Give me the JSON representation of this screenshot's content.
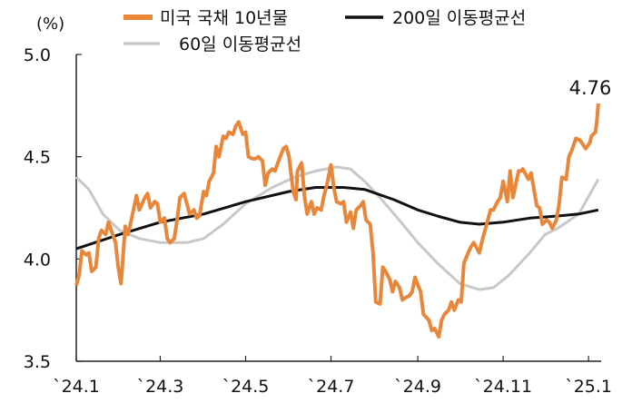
{
  "chart_data": {
    "type": "line",
    "ylabel": "(%)",
    "ylim": [
      3.5,
      5.0
    ],
    "yticks": [
      "5.0",
      "4.5",
      "4.0",
      "3.5"
    ],
    "y_tick_values": [
      5.0,
      4.5,
      4.0,
      3.5
    ],
    "xlim": [
      "2024-01-01",
      "2025-01-10"
    ],
    "xticks": [
      "`24.1",
      "`24.3",
      "`24.5",
      "`24.7",
      "`24.9",
      "`24.11",
      "`25.1"
    ],
    "x_tick_dates": [
      "2024-01-01",
      "2024-03-01",
      "2024-05-01",
      "2024-07-01",
      "2024-09-01",
      "2024-11-01",
      "2025-01-01"
    ],
    "grid": false,
    "legend": "top",
    "annotation": {
      "text": "4.76",
      "series": "미국 국채 10년물",
      "date": "2025-01-07"
    },
    "series": [
      {
        "name": "미국 국채 10년물",
        "color": "#E8873A",
        "points": [
          [
            "2024-01-01",
            3.87
          ],
          [
            "2024-01-03",
            3.92
          ],
          [
            "2024-01-05",
            4.04
          ],
          [
            "2024-01-08",
            4.02
          ],
          [
            "2024-01-10",
            4.03
          ],
          [
            "2024-01-12",
            3.94
          ],
          [
            "2024-01-15",
            3.96
          ],
          [
            "2024-01-17",
            4.1
          ],
          [
            "2024-01-19",
            4.14
          ],
          [
            "2024-01-22",
            4.12
          ],
          [
            "2024-01-24",
            4.18
          ],
          [
            "2024-01-26",
            4.14
          ],
          [
            "2024-01-29",
            4.08
          ],
          [
            "2024-01-31",
            3.96
          ],
          [
            "2024-02-02",
            3.88
          ],
          [
            "2024-02-05",
            4.16
          ],
          [
            "2024-02-07",
            4.12
          ],
          [
            "2024-02-09",
            4.18
          ],
          [
            "2024-02-13",
            4.31
          ],
          [
            "2024-02-15",
            4.24
          ],
          [
            "2024-02-19",
            4.3
          ],
          [
            "2024-02-21",
            4.32
          ],
          [
            "2024-02-23",
            4.25
          ],
          [
            "2024-02-26",
            4.28
          ],
          [
            "2024-02-28",
            4.27
          ],
          [
            "2024-03-01",
            4.18
          ],
          [
            "2024-03-04",
            4.2
          ],
          [
            "2024-03-06",
            4.1
          ],
          [
            "2024-03-08",
            4.08
          ],
          [
            "2024-03-11",
            4.1
          ],
          [
            "2024-03-13",
            4.19
          ],
          [
            "2024-03-15",
            4.3
          ],
          [
            "2024-03-18",
            4.32
          ],
          [
            "2024-03-20",
            4.27
          ],
          [
            "2024-03-22",
            4.22
          ],
          [
            "2024-03-25",
            4.24
          ],
          [
            "2024-03-27",
            4.2
          ],
          [
            "2024-03-29",
            4.21
          ],
          [
            "2024-04-01",
            4.33
          ],
          [
            "2024-04-03",
            4.31
          ],
          [
            "2024-04-05",
            4.38
          ],
          [
            "2024-04-08",
            4.42
          ],
          [
            "2024-04-10",
            4.55
          ],
          [
            "2024-04-12",
            4.5
          ],
          [
            "2024-04-15",
            4.6
          ],
          [
            "2024-04-17",
            4.59
          ],
          [
            "2024-04-19",
            4.62
          ],
          [
            "2024-04-22",
            4.61
          ],
          [
            "2024-04-24",
            4.65
          ],
          [
            "2024-04-26",
            4.67
          ],
          [
            "2024-04-29",
            4.61
          ],
          [
            "2024-05-01",
            4.62
          ],
          [
            "2024-05-03",
            4.5
          ],
          [
            "2024-05-06",
            4.49
          ],
          [
            "2024-05-08",
            4.49
          ],
          [
            "2024-05-10",
            4.5
          ],
          [
            "2024-05-13",
            4.48
          ],
          [
            "2024-05-15",
            4.36
          ],
          [
            "2024-05-17",
            4.42
          ],
          [
            "2024-05-20",
            4.44
          ],
          [
            "2024-05-22",
            4.43
          ],
          [
            "2024-05-24",
            4.47
          ],
          [
            "2024-05-28",
            4.54
          ],
          [
            "2024-05-30",
            4.55
          ],
          [
            "2024-06-01",
            4.5
          ],
          [
            "2024-06-04",
            4.33
          ],
          [
            "2024-06-06",
            4.29
          ],
          [
            "2024-06-07",
            4.43
          ],
          [
            "2024-06-10",
            4.47
          ],
          [
            "2024-06-12",
            4.31
          ],
          [
            "2024-06-14",
            4.22
          ],
          [
            "2024-06-17",
            4.28
          ],
          [
            "2024-06-19",
            4.22
          ],
          [
            "2024-06-21",
            4.25
          ],
          [
            "2024-06-24",
            4.24
          ],
          [
            "2024-06-26",
            4.31
          ],
          [
            "2024-06-28",
            4.36
          ],
          [
            "2024-07-01",
            4.46
          ],
          [
            "2024-07-03",
            4.35
          ],
          [
            "2024-07-05",
            4.28
          ],
          [
            "2024-07-08",
            4.27
          ],
          [
            "2024-07-10",
            4.28
          ],
          [
            "2024-07-12",
            4.18
          ],
          [
            "2024-07-15",
            4.23
          ],
          [
            "2024-07-17",
            4.15
          ],
          [
            "2024-07-19",
            4.24
          ],
          [
            "2024-07-22",
            4.26
          ],
          [
            "2024-07-24",
            4.28
          ],
          [
            "2024-07-26",
            4.19
          ],
          [
            "2024-07-29",
            4.17
          ],
          [
            "2024-07-31",
            4.03
          ],
          [
            "2024-08-02",
            3.79
          ],
          [
            "2024-08-05",
            3.78
          ],
          [
            "2024-08-07",
            3.96
          ],
          [
            "2024-08-09",
            3.94
          ],
          [
            "2024-08-12",
            3.9
          ],
          [
            "2024-08-14",
            3.84
          ],
          [
            "2024-08-16",
            3.89
          ],
          [
            "2024-08-19",
            3.86
          ],
          [
            "2024-08-21",
            3.8
          ],
          [
            "2024-08-23",
            3.81
          ],
          [
            "2024-08-26",
            3.82
          ],
          [
            "2024-08-28",
            3.84
          ],
          [
            "2024-08-30",
            3.91
          ],
          [
            "2024-09-03",
            3.84
          ],
          [
            "2024-09-05",
            3.73
          ],
          [
            "2024-09-09",
            3.7
          ],
          [
            "2024-09-11",
            3.65
          ],
          [
            "2024-09-13",
            3.66
          ],
          [
            "2024-09-16",
            3.62
          ],
          [
            "2024-09-18",
            3.7
          ],
          [
            "2024-09-20",
            3.73
          ],
          [
            "2024-09-23",
            3.75
          ],
          [
            "2024-09-25",
            3.79
          ],
          [
            "2024-09-27",
            3.75
          ],
          [
            "2024-09-30",
            3.8
          ],
          [
            "2024-10-02",
            3.79
          ],
          [
            "2024-10-04",
            3.98
          ],
          [
            "2024-10-07",
            4.03
          ],
          [
            "2024-10-09",
            4.06
          ],
          [
            "2024-10-11",
            4.08
          ],
          [
            "2024-10-15",
            4.03
          ],
          [
            "2024-10-17",
            4.09
          ],
          [
            "2024-10-21",
            4.19
          ],
          [
            "2024-10-23",
            4.24
          ],
          [
            "2024-10-25",
            4.24
          ],
          [
            "2024-10-28",
            4.28
          ],
          [
            "2024-10-30",
            4.3
          ],
          [
            "2024-11-01",
            4.38
          ],
          [
            "2024-11-04",
            4.28
          ],
          [
            "2024-11-06",
            4.43
          ],
          [
            "2024-11-08",
            4.3
          ],
          [
            "2024-11-12",
            4.43
          ],
          [
            "2024-11-14",
            4.43
          ],
          [
            "2024-11-15",
            4.44
          ],
          [
            "2024-11-19",
            4.39
          ],
          [
            "2024-11-21",
            4.42
          ],
          [
            "2024-11-25",
            4.26
          ],
          [
            "2024-11-27",
            4.25
          ],
          [
            "2024-11-29",
            4.17
          ],
          [
            "2024-12-02",
            4.19
          ],
          [
            "2024-12-04",
            4.18
          ],
          [
            "2024-12-06",
            4.15
          ],
          [
            "2024-12-09",
            4.19
          ],
          [
            "2024-12-11",
            4.27
          ],
          [
            "2024-12-13",
            4.4
          ],
          [
            "2024-12-16",
            4.39
          ],
          [
            "2024-12-18",
            4.5
          ],
          [
            "2024-12-20",
            4.53
          ],
          [
            "2024-12-23",
            4.59
          ],
          [
            "2024-12-26",
            4.58
          ],
          [
            "2024-12-30",
            4.54
          ],
          [
            "2025-01-02",
            4.57
          ],
          [
            "2025-01-03",
            4.6
          ],
          [
            "2025-01-06",
            4.62
          ],
          [
            "2025-01-07",
            4.68
          ],
          [
            "2025-01-08",
            4.76
          ]
        ]
      },
      {
        "name": "200일 이동평균선",
        "color": "#111111",
        "points": [
          [
            "2024-01-01",
            4.05
          ],
          [
            "2024-02-01",
            4.12
          ],
          [
            "2024-03-01",
            4.18
          ],
          [
            "2024-04-01",
            4.22
          ],
          [
            "2024-05-01",
            4.28
          ],
          [
            "2024-06-01",
            4.33
          ],
          [
            "2024-06-20",
            4.35
          ],
          [
            "2024-07-10",
            4.35
          ],
          [
            "2024-07-25",
            4.34
          ],
          [
            "2024-08-15",
            4.29
          ],
          [
            "2024-09-01",
            4.24
          ],
          [
            "2024-09-15",
            4.21
          ],
          [
            "2024-10-01",
            4.18
          ],
          [
            "2024-10-15",
            4.17
          ],
          [
            "2024-11-01",
            4.18
          ],
          [
            "2024-11-20",
            4.2
          ],
          [
            "2024-12-10",
            4.21
          ],
          [
            "2024-12-25",
            4.22
          ],
          [
            "2025-01-08",
            4.24
          ]
        ]
      },
      {
        "name": "60일 이동평균선",
        "color": "#C8C8C8",
        "points": [
          [
            "2024-01-01",
            4.4
          ],
          [
            "2024-01-10",
            4.34
          ],
          [
            "2024-01-20",
            4.22
          ],
          [
            "2024-02-01",
            4.14
          ],
          [
            "2024-02-15",
            4.1
          ],
          [
            "2024-03-01",
            4.08
          ],
          [
            "2024-03-20",
            4.08
          ],
          [
            "2024-04-01",
            4.1
          ],
          [
            "2024-04-15",
            4.17
          ],
          [
            "2024-05-01",
            4.27
          ],
          [
            "2024-05-20",
            4.35
          ],
          [
            "2024-06-05",
            4.4
          ],
          [
            "2024-06-20",
            4.43
          ],
          [
            "2024-07-05",
            4.45
          ],
          [
            "2024-07-15",
            4.44
          ],
          [
            "2024-07-25",
            4.38
          ],
          [
            "2024-08-05",
            4.3
          ],
          [
            "2024-08-20",
            4.18
          ],
          [
            "2024-09-01",
            4.08
          ],
          [
            "2024-09-15",
            3.98
          ],
          [
            "2024-10-01",
            3.88
          ],
          [
            "2024-10-15",
            3.85
          ],
          [
            "2024-10-25",
            3.86
          ],
          [
            "2024-11-05",
            3.92
          ],
          [
            "2024-11-20",
            4.03
          ],
          [
            "2024-12-01",
            4.12
          ],
          [
            "2024-12-10",
            4.15
          ],
          [
            "2024-12-25",
            4.22
          ],
          [
            "2025-01-08",
            4.39
          ]
        ]
      }
    ]
  }
}
